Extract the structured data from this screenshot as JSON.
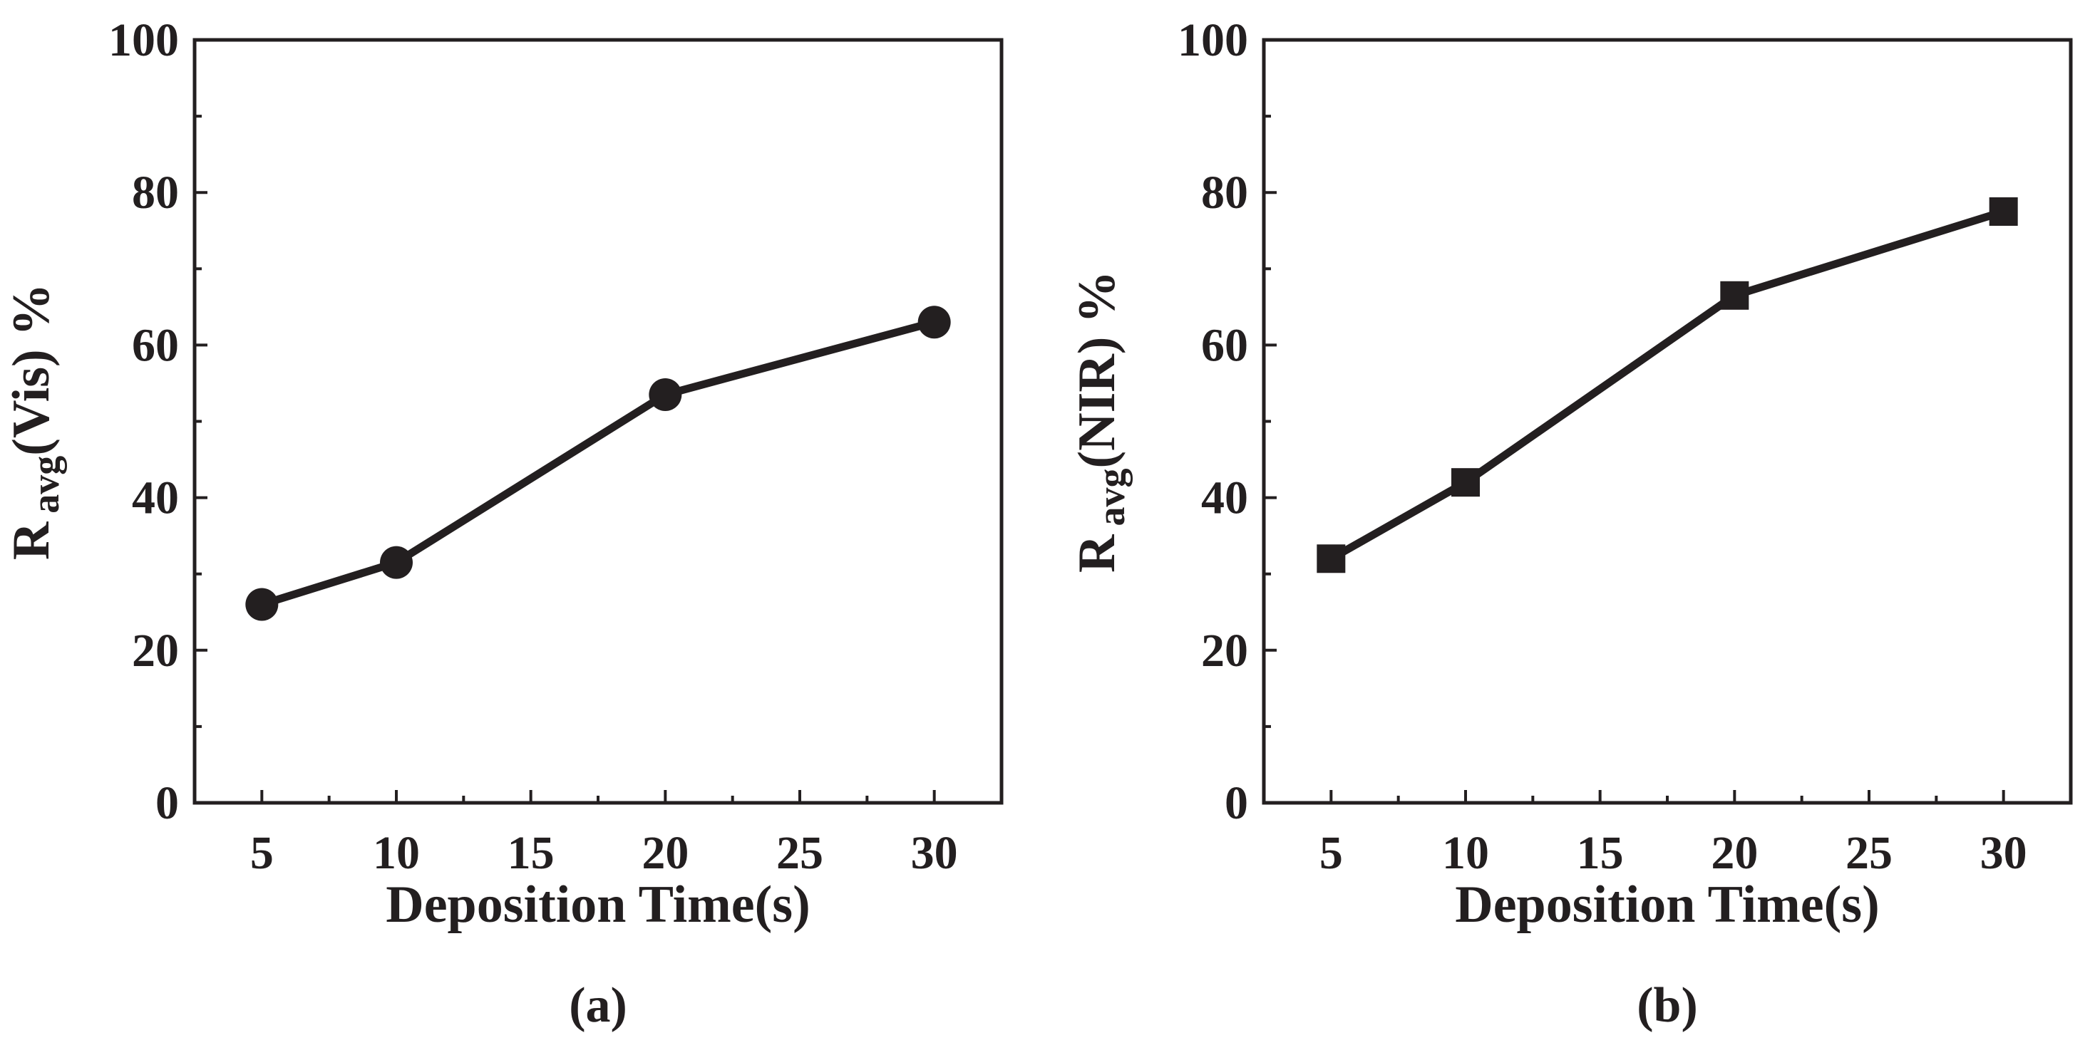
{
  "chart_data": [
    {
      "type": "line",
      "panel_label": "(a)",
      "x": [
        5,
        10,
        20,
        30
      ],
      "series": [
        {
          "name": "R avg (Vis)",
          "values": [
            26,
            31.5,
            53.5,
            63
          ],
          "marker": "circle"
        }
      ],
      "xlabel": "Deposition Time(s)",
      "ylabel": {
        "main": "R",
        "sub": "avg",
        "rest": "(Vis) %"
      },
      "xlim": [
        2.5,
        32.5
      ],
      "ylim": [
        0,
        100
      ],
      "x_ticks": [
        5,
        10,
        15,
        20,
        25,
        30
      ],
      "y_ticks": [
        0,
        20,
        40,
        60,
        80,
        100
      ],
      "grid": false,
      "color": "#231f20"
    },
    {
      "type": "line",
      "panel_label": "(b)",
      "x": [
        5,
        10,
        20,
        30
      ],
      "series": [
        {
          "name": "R avg (NIR)",
          "values": [
            32,
            42,
            66.5,
            77.5
          ],
          "marker": "square"
        }
      ],
      "xlabel": "Deposition Time(s)",
      "ylabel": {
        "main": "R",
        "sub": "avg",
        "rest": "(NIR) %"
      },
      "xlim": [
        2.5,
        32.5
      ],
      "ylim": [
        0,
        100
      ],
      "x_ticks": [
        5,
        10,
        15,
        20,
        25,
        30
      ],
      "y_ticks": [
        0,
        20,
        40,
        60,
        80,
        100
      ],
      "grid": false,
      "color": "#231f20"
    }
  ]
}
